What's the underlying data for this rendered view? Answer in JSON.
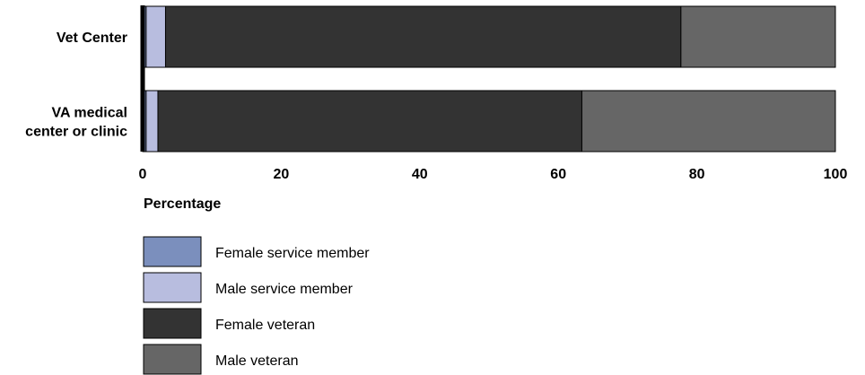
{
  "chart_data": {
    "type": "bar",
    "orientation": "horizontal",
    "stacked": true,
    "categories": [
      "Vet Center",
      "VA medical center or clinic"
    ],
    "category_lines": [
      [
        "Vet Center"
      ],
      [
        "VA medical",
        "center or clinic"
      ]
    ],
    "series": [
      {
        "name": "Female service member",
        "values": [
          0.5,
          0.5
        ],
        "color": "#7b8fbd"
      },
      {
        "name": "Male service member",
        "values": [
          2.8,
          1.7
        ],
        "color": "#b8bddf"
      },
      {
        "name": "Female veteran",
        "values": [
          74.4,
          61.2
        ],
        "color": "#333333"
      },
      {
        "name": "Male veteran",
        "values": [
          22.3,
          36.6
        ],
        "color": "#666666"
      }
    ],
    "xlabel": "Percentage",
    "xlim": [
      0,
      100
    ],
    "xticks": [
      0,
      20,
      40,
      60,
      80,
      100
    ],
    "grid": false,
    "legend_position": "bottom-left"
  }
}
